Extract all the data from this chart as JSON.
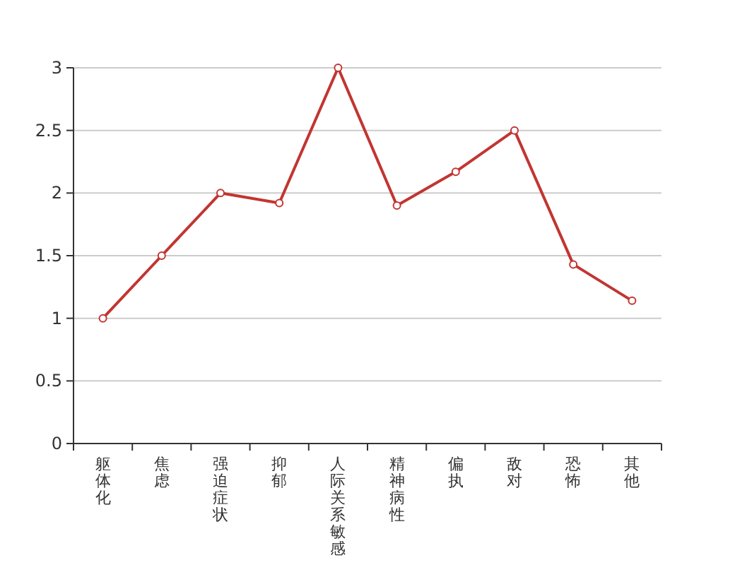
{
  "chart_data": {
    "type": "line",
    "categories": [
      "躯体化",
      "焦虑",
      "强迫症状",
      "抑郁",
      "人际关系敏感",
      "精神病性",
      "偏执",
      "敌对",
      "恐怖",
      "其他"
    ],
    "series": [
      {
        "color": "#c23531",
        "values": [
          1,
          1.5,
          2,
          1.92,
          3,
          1.9,
          2.17,
          2.5,
          1.43,
          1.14
        ]
      }
    ],
    "ylim": [
      0,
      3
    ],
    "yticks": [
      0,
      {
        "value": 0.5,
        "label": "0.5"
      },
      1,
      {
        "value": 1.5,
        "label": "1.5"
      },
      2,
      {
        "value": 2.5,
        "label": "2.5"
      },
      3
    ],
    "grid": "y",
    "marker": "circle",
    "line_style": "solid"
  }
}
